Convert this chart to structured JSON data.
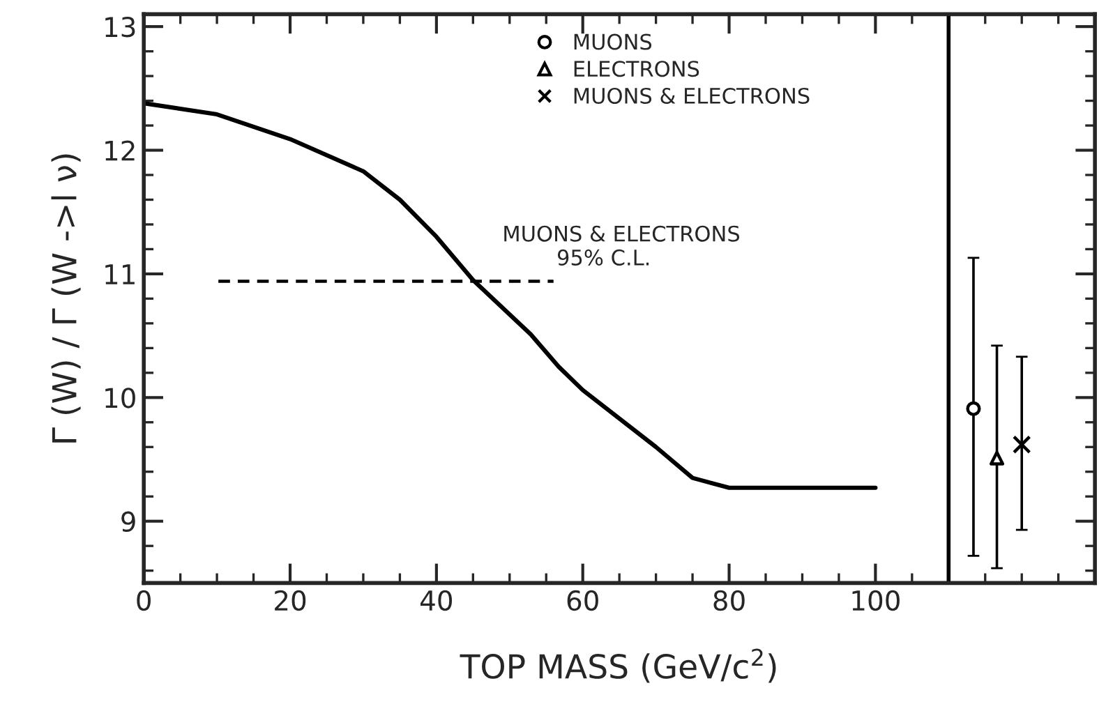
{
  "chart_data": {
    "type": "line",
    "xlabel": "TOP MASS (GeV/c$^{2}$)",
    "ylabel": "Γ (W) / Γ (W ->l ν)",
    "xlim": [
      0,
      130
    ],
    "xticks": [
      0,
      20,
      40,
      60,
      80,
      100
    ],
    "ylim": [
      8.5,
      13.1
    ],
    "yticks": [
      9,
      10,
      11,
      12,
      13
    ],
    "grid": false,
    "legend": "top",
    "ref_lines": [
      {
        "axis": "x",
        "value": 110,
        "color": "#000000",
        "line_style": "solid"
      }
    ],
    "annotations": [
      {
        "text": "MUONS & ELECTRONS\n        95% C.L.",
        "x": 49,
        "y": 10.94
      }
    ],
    "series": [
      {
        "color": "#000000",
        "line_style": "solid",
        "marker": "none",
        "x": [
          0,
          10,
          20,
          30,
          35,
          40,
          45,
          52.9,
          56.7,
          60,
          70,
          75,
          80,
          100
        ],
        "values": [
          12.38,
          12.29,
          12.09,
          11.83,
          11.6,
          11.3,
          10.95,
          10.51,
          10.25,
          10.06,
          9.6,
          9.35,
          9.27,
          9.27
        ]
      },
      {
        "color": "#000000",
        "line_style": "dashed",
        "marker": "none",
        "x": [
          10,
          56
        ],
        "values": [
          10.94,
          10.94
        ]
      },
      {
        "type": "scatter",
        "name": "MUONS",
        "color": "#000000",
        "marker": "circle",
        "x": [
          113.4
        ],
        "values": [
          9.91
        ],
        "errors": [
          [
            8.72,
            11.13
          ]
        ]
      },
      {
        "type": "scatter",
        "name": "ELECTRONS",
        "color": "#000000",
        "marker": "triangle",
        "x": [
          116.6
        ],
        "values": [
          9.51
        ],
        "errors": [
          [
            8.62,
            10.42
          ]
        ]
      },
      {
        "type": "scatter",
        "name": "MUONS & ELECTRONS",
        "color": "#000000",
        "marker": "cross",
        "x": [
          120.0
        ],
        "values": [
          9.62
        ],
        "errors": [
          [
            8.93,
            10.33
          ]
        ]
      }
    ]
  }
}
